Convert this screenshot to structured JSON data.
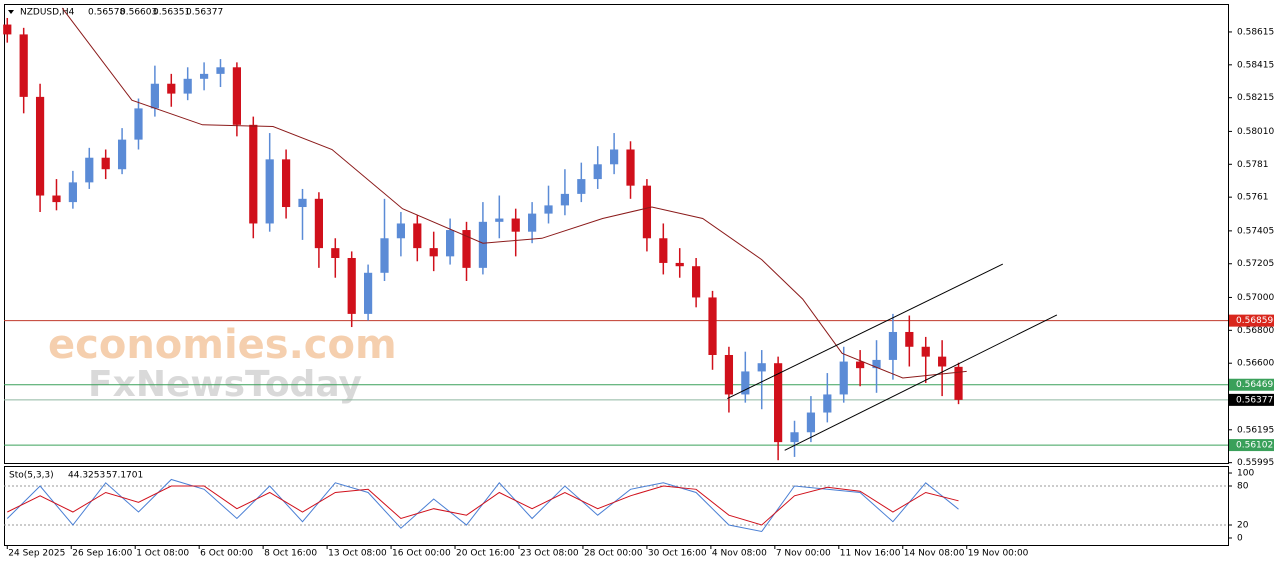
{
  "chart_data": [
    {
      "type": "candlestick",
      "symbol": "NZDUSD,H4",
      "candles": [
        [
          0.5866,
          0.587,
          0.5855,
          0.586
        ],
        [
          0.586,
          0.5864,
          0.5812,
          0.5822
        ],
        [
          0.5822,
          0.583,
          0.5752,
          0.5762
        ],
        [
          0.5762,
          0.5772,
          0.5753,
          0.5758
        ],
        [
          0.5758,
          0.5777,
          0.5754,
          0.577
        ],
        [
          0.577,
          0.5791,
          0.5766,
          0.5785
        ],
        [
          0.5785,
          0.579,
          0.5772,
          0.5778
        ],
        [
          0.5778,
          0.5803,
          0.5775,
          0.5796
        ],
        [
          0.5796,
          0.5821,
          0.579,
          0.5815
        ],
        [
          0.5815,
          0.5841,
          0.581,
          0.583
        ],
        [
          0.583,
          0.5836,
          0.5816,
          0.5824
        ],
        [
          0.5824,
          0.584,
          0.582,
          0.5833
        ],
        [
          0.5833,
          0.5843,
          0.5826,
          0.5836
        ],
        [
          0.5836,
          0.5845,
          0.5828,
          0.584
        ],
        [
          0.584,
          0.5843,
          0.5798,
          0.5805
        ],
        [
          0.5805,
          0.581,
          0.5736,
          0.5745
        ],
        [
          0.5745,
          0.58,
          0.574,
          0.5784
        ],
        [
          0.5784,
          0.579,
          0.5748,
          0.5755
        ],
        [
          0.5755,
          0.5766,
          0.5735,
          0.576
        ],
        [
          0.576,
          0.5764,
          0.5718,
          0.573
        ],
        [
          0.573,
          0.5736,
          0.5712,
          0.5724
        ],
        [
          0.5724,
          0.5728,
          0.5682,
          0.569
        ],
        [
          0.569,
          0.572,
          0.5686,
          0.5715
        ],
        [
          0.5715,
          0.576,
          0.571,
          0.5736
        ],
        [
          0.5736,
          0.5752,
          0.5725,
          0.5745
        ],
        [
          0.5745,
          0.575,
          0.5722,
          0.573
        ],
        [
          0.573,
          0.574,
          0.5716,
          0.5725
        ],
        [
          0.5725,
          0.5748,
          0.572,
          0.5741
        ],
        [
          0.5741,
          0.5746,
          0.571,
          0.5718
        ],
        [
          0.5718,
          0.5758,
          0.5714,
          0.5746
        ],
        [
          0.5746,
          0.5762,
          0.5736,
          0.5748
        ],
        [
          0.5748,
          0.5754,
          0.5725,
          0.574
        ],
        [
          0.574,
          0.5758,
          0.5733,
          0.5751
        ],
        [
          0.5751,
          0.5768,
          0.5745,
          0.5756
        ],
        [
          0.5756,
          0.5778,
          0.575,
          0.5763
        ],
        [
          0.5763,
          0.5782,
          0.5758,
          0.5772
        ],
        [
          0.5772,
          0.5792,
          0.5766,
          0.5781
        ],
        [
          0.5781,
          0.58,
          0.5775,
          0.579
        ],
        [
          0.579,
          0.5795,
          0.576,
          0.5768
        ],
        [
          0.5768,
          0.5772,
          0.5728,
          0.5736
        ],
        [
          0.5736,
          0.5745,
          0.5714,
          0.5721
        ],
        [
          0.5721,
          0.573,
          0.5712,
          0.5719
        ],
        [
          0.5719,
          0.5724,
          0.5694,
          0.57
        ],
        [
          0.57,
          0.5704,
          0.5656,
          0.5665
        ],
        [
          0.5665,
          0.567,
          0.563,
          0.5641
        ],
        [
          0.5641,
          0.5667,
          0.5636,
          0.5655
        ],
        [
          0.5655,
          0.5668,
          0.5632,
          0.566
        ],
        [
          0.566,
          0.5664,
          0.5601,
          0.5612
        ],
        [
          0.5612,
          0.5625,
          0.5603,
          0.5618
        ],
        [
          0.5618,
          0.564,
          0.5612,
          0.563
        ],
        [
          0.563,
          0.5654,
          0.5624,
          0.5641
        ],
        [
          0.5641,
          0.567,
          0.5636,
          0.5661
        ],
        [
          0.5661,
          0.5668,
          0.5646,
          0.5657
        ],
        [
          0.5657,
          0.5674,
          0.5642,
          0.5662
        ],
        [
          0.5662,
          0.569,
          0.565,
          0.5679
        ],
        [
          0.5679,
          0.5689,
          0.5658,
          0.567
        ],
        [
          0.567,
          0.5676,
          0.5648,
          0.5664
        ],
        [
          0.5664,
          0.5674,
          0.564,
          0.5658
        ],
        [
          0.56578,
          0.56603,
          0.56351,
          0.56377
        ]
      ],
      "up_color": "#5b8bd6",
      "down_color": "#d0101b",
      "ma": {
        "color": "#8b1a1a",
        "x": [
          3.35,
          7.6,
          11.9,
          16.2,
          19.8,
          24.1,
          29,
          32.6,
          36.3,
          39.3,
          42.4,
          46,
          48.5,
          50.9,
          54.6,
          58.5
        ],
        "values": [
          0.5876,
          0.582,
          0.5805,
          0.5804,
          0.579,
          0.5754,
          0.5733,
          0.5736,
          0.5748,
          0.5755,
          0.5748,
          0.5723,
          0.5699,
          0.5666,
          0.5651,
          0.5655
        ]
      },
      "trendlines": [
        {
          "x": [
            43.9,
            60.7
          ],
          "values": [
            0.56385,
            0.57203
          ]
        },
        {
          "x": [
            47.4,
            64.0
          ],
          "values": [
            0.5607,
            0.56894
          ]
        }
      ],
      "levels": [
        {
          "value": 0.56859,
          "color": "#c0392b",
          "label_bg": "#d9261c"
        },
        {
          "value": 0.56469,
          "color": "#3aa05a",
          "label_bg": "#3aa05a"
        },
        {
          "value": 0.56377,
          "color": "#8fb8a0",
          "label_bg": "#000000"
        },
        {
          "value": 0.56102,
          "color": "#3aa05a",
          "label_bg": "#3aa05a"
        }
      ],
      "xlim": [
        -0.2,
        74.43
      ],
      "ylim": [
        0.55993,
        0.58785
      ],
      "yticks": [
        0.58615,
        0.58415,
        0.58215,
        {
          "value": 0.5801,
          "label": "0.58010"
        },
        0.5781,
        0.5761,
        0.57405,
        0.57205,
        {
          "value": 0.57,
          "label": "0.57000"
        },
        {
          "value": 0.568,
          "label": "0.56800"
        },
        {
          "value": 0.566,
          "label": "0.56600"
        },
        0.56195,
        0.55995
      ],
      "xticks": [
        {
          "value": 0,
          "label": "24 Sep 2025"
        },
        {
          "value": 3.9,
          "label": "26 Sep 16:00"
        },
        {
          "value": 7.8,
          "label": "1 Oct 08:00"
        },
        {
          "value": 11.7,
          "label": "6 Oct 00:00"
        },
        {
          "value": 15.6,
          "label": "8 Oct 16:00"
        },
        {
          "value": 19.5,
          "label": "13 Oct 08:00"
        },
        {
          "value": 23.4,
          "label": "16 Oct 00:00"
        },
        {
          "value": 27.3,
          "label": "20 Oct 16:00"
        },
        {
          "value": 31.2,
          "label": "23 Oct 08:00"
        },
        {
          "value": 35.1,
          "label": "28 Oct 00:00"
        },
        {
          "value": 39,
          "label": "30 Oct 16:00"
        },
        {
          "value": 42.9,
          "label": "4 Nov 08:00"
        },
        {
          "value": 46.8,
          "label": "7 Nov 00:00"
        },
        {
          "value": 50.7,
          "label": "11 Nov 16:00"
        },
        {
          "value": 54.6,
          "label": "14 Nov 08:00"
        },
        {
          "value": 58.5,
          "label": "19 Nov 00:00"
        }
      ],
      "watermarks": [
        "economies.com",
        "FxNewsToday"
      ]
    },
    {
      "type": "line",
      "name": "Sto(5,3,3)",
      "x": [
        0,
        2,
        4,
        6,
        8,
        10,
        12,
        14,
        16,
        18,
        20,
        22,
        24,
        26,
        28,
        30,
        32,
        34,
        36,
        38,
        40,
        42,
        44,
        46,
        48,
        50,
        52,
        54,
        56,
        58
      ],
      "series": [
        {
          "color": "#4a7fd4",
          "values": [
            30,
            80,
            20,
            85,
            40,
            90,
            75,
            30,
            80,
            25,
            85,
            70,
            15,
            60,
            20,
            85,
            30,
            80,
            35,
            75,
            85,
            70,
            20,
            10,
            80,
            75,
            70,
            25,
            85,
            44.3253
          ]
        },
        {
          "color": "#d0101b",
          "values": [
            40,
            65,
            40,
            70,
            55,
            80,
            80,
            45,
            70,
            40,
            70,
            75,
            30,
            45,
            35,
            70,
            45,
            70,
            45,
            65,
            80,
            75,
            35,
            20,
            65,
            78,
            72,
            40,
            70,
            57.1701
          ]
        }
      ],
      "levels": [
        80,
        20
      ],
      "xlim": [
        -0.2,
        74.43
      ],
      "ylim": [
        -10.8,
        110.8
      ],
      "yticks": [
        100,
        80,
        20,
        0
      ]
    }
  ]
}
